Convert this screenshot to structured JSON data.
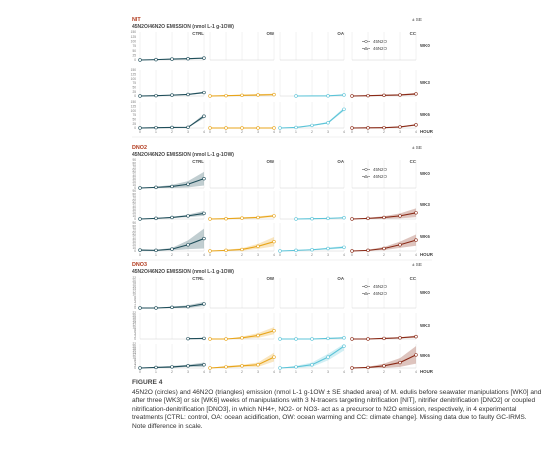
{
  "figure": {
    "number": "FIGURE 4",
    "caption": "45N2O (circles) and 46N2O (triangles) emission (nmol L-1 g-1OW ± SE shaded area) of M. edulis before seawater manipulations [WK0] and after three [WK3] or six [WK6] weeks of manipulations with 3 N-tracers targeting nitrification [NIT], nitrifier denitrification [DNO2] or coupled nitrification-denitrification [DNO3], in which NH4+, NO2- or NO3- act as a precursor to N2O emission, respectively, in 4 experimental treatments [CTRL: control, OA: ocean acidification, OW: ocean warming and CC: climate change]. Missing data due to faulty GC-IRMS. Note difference in scale."
  },
  "colors": {
    "CTRL": "#1f4e5a",
    "OW": "#e8a51b",
    "OA": "#5cc4d8",
    "CC": "#8a2a17",
    "grid": "#e6e6e6",
    "text": "#444444"
  },
  "chart_data": [
    {
      "type": "line",
      "title": "NIT",
      "subtitle": "45N2O/46N2O EMISSION (nmol L-1 g-1OW)",
      "se_label": "± SE",
      "legend": [
        "45N2O",
        "46N2O"
      ],
      "treatments": [
        "CTRL",
        "OW",
        "OA",
        "CC"
      ],
      "weeks": [
        "WK0",
        "WK3",
        "WK6"
      ],
      "xlabel": "HOUR",
      "x": [
        0,
        1,
        2,
        3,
        4
      ],
      "yticks": [
        "0",
        "25",
        "50",
        "75",
        "100",
        "125",
        "150"
      ],
      "ylim": [
        0,
        150
      ],
      "series": [
        {
          "treatment": "CTRL",
          "week": "WK0",
          "values": [
            0,
            2,
            5,
            7,
            10
          ],
          "se": [
            0,
            1,
            2,
            3,
            4
          ]
        },
        {
          "treatment": "CTRL",
          "week": "WK3",
          "values": [
            0,
            2,
            5,
            9,
            20
          ],
          "se": [
            0,
            1,
            2,
            3,
            5
          ]
        },
        {
          "treatment": "CTRL",
          "week": "WK6",
          "values": [
            0,
            2,
            3,
            4,
            68
          ],
          "se": [
            0,
            1,
            1,
            2,
            12
          ]
        },
        {
          "treatment": "OW",
          "week": "WK3",
          "values": [
            0,
            2,
            4,
            6,
            8
          ],
          "se": [
            0,
            2,
            4,
            5,
            6
          ]
        },
        {
          "treatment": "OW",
          "week": "WK6",
          "values": [
            0,
            0,
            0,
            0,
            0
          ],
          "se": [
            0,
            0,
            0,
            0,
            0
          ]
        },
        {
          "treatment": "OA",
          "week": "WK3",
          "values": [
            null,
            0,
            null,
            1,
            6
          ],
          "se": [
            0,
            0,
            0,
            1,
            3
          ]
        },
        {
          "treatment": "OA",
          "week": "WK6",
          "values": [
            0,
            3,
            15,
            30,
            108
          ],
          "se": [
            0,
            1,
            3,
            5,
            10
          ]
        },
        {
          "treatment": "CC",
          "week": "WK3",
          "values": [
            0,
            2,
            4,
            6,
            12
          ],
          "se": [
            0,
            2,
            3,
            4,
            6
          ]
        },
        {
          "treatment": "CC",
          "week": "WK6",
          "values": [
            0,
            1,
            2,
            6,
            18
          ],
          "se": [
            0,
            1,
            2,
            3,
            5
          ]
        }
      ]
    },
    {
      "type": "line",
      "title": "DNO2",
      "subtitle": "45N2O/46N2O EMISSION (nmol L-1 g-1OW)",
      "se_label": "± SE",
      "legend": [
        "45N2O",
        "46N2O"
      ],
      "treatments": [
        "CTRL",
        "OW",
        "OA",
        "CC"
      ],
      "weeks": [
        "WK0",
        "WK3",
        "WK6"
      ],
      "xlabel": "HOUR",
      "x": [
        0,
        1,
        2,
        3,
        4
      ],
      "yticks": [
        "0",
        "10",
        "20",
        "30",
        "40",
        "50",
        "60",
        "70",
        "80",
        "90"
      ],
      "ylim": [
        0,
        90
      ],
      "series": [
        {
          "treatment": "CTRL",
          "week": "WK0",
          "values": [
            0,
            2,
            5,
            12,
            30
          ],
          "se": [
            0,
            2,
            5,
            10,
            22
          ]
        },
        {
          "treatment": "CTRL",
          "week": "WK3",
          "values": [
            0,
            2,
            5,
            10,
            18
          ],
          "se": [
            0,
            1,
            2,
            4,
            8
          ]
        },
        {
          "treatment": "CTRL",
          "week": "WK6",
          "values": [
            3,
            2,
            6,
            20,
            40
          ],
          "se": [
            2,
            2,
            4,
            14,
            32
          ]
        },
        {
          "treatment": "OW",
          "week": "WK3",
          "values": [
            0,
            1,
            3,
            5,
            10
          ],
          "se": [
            0,
            1,
            2,
            3,
            4
          ]
        },
        {
          "treatment": "OW",
          "week": "WK6",
          "values": [
            0,
            2,
            5,
            15,
            30
          ],
          "se": [
            0,
            2,
            4,
            8,
            15
          ]
        },
        {
          "treatment": "OA",
          "week": "WK3",
          "values": [
            null,
            0,
            1,
            2,
            4
          ],
          "se": [
            0,
            0,
            1,
            1,
            2
          ]
        },
        {
          "treatment": "OA",
          "week": "WK6",
          "values": [
            0,
            2,
            4,
            8,
            12
          ],
          "se": [
            0,
            1,
            2,
            3,
            4
          ]
        },
        {
          "treatment": "CC",
          "week": "WK3",
          "values": [
            0,
            2,
            5,
            10,
            20
          ],
          "se": [
            0,
            2,
            4,
            8,
            14
          ]
        },
        {
          "treatment": "CC",
          "week": "WK6",
          "values": [
            0,
            2,
            8,
            20,
            35
          ],
          "se": [
            0,
            2,
            5,
            10,
            18
          ]
        }
      ]
    },
    {
      "type": "line",
      "title": "DNO3",
      "subtitle": "45N2O/46N2O EMISSION (nmol L-1 g-1OW)",
      "se_label": "± SE",
      "legend": [
        "45N2O",
        "46N2O"
      ],
      "treatments": [
        "CTRL",
        "OW",
        "OA",
        "CC"
      ],
      "weeks": [
        "WK0",
        "WK3",
        "WK6"
      ],
      "xlabel": "HOUR",
      "x": [
        0,
        1,
        2,
        3,
        4
      ],
      "yticks": [
        "0",
        "2",
        "4",
        "6",
        "8",
        "10",
        "12",
        "14",
        "16",
        "18",
        "20",
        "22"
      ],
      "ylim": [
        0,
        22
      ],
      "series": [
        {
          "treatment": "CTRL",
          "week": "WK0",
          "values": [
            0,
            0,
            0.5,
            1,
            3
          ],
          "se": [
            0,
            0,
            0.5,
            1,
            1.5
          ]
        },
        {
          "treatment": "CTRL",
          "week": "WK3",
          "values": [
            null,
            null,
            null,
            0.3,
            0.5
          ],
          "se": [
            0,
            0,
            0,
            0.3,
            0.5
          ]
        },
        {
          "treatment": "CTRL",
          "week": "WK6",
          "values": [
            0,
            0.5,
            1,
            2,
            3
          ],
          "se": [
            0,
            0.5,
            1,
            1,
            2
          ]
        },
        {
          "treatment": "OW",
          "week": "WK3",
          "values": [
            0,
            0,
            1,
            3,
            7
          ],
          "se": [
            0,
            0,
            1,
            2,
            3
          ]
        },
        {
          "treatment": "OW",
          "week": "WK6",
          "values": [
            0,
            1,
            2,
            3,
            10
          ],
          "se": [
            0,
            1,
            1,
            2,
            4
          ]
        },
        {
          "treatment": "OA",
          "week": "WK3",
          "values": [
            0,
            0,
            0,
            0.5,
            1
          ],
          "se": [
            0,
            0,
            0,
            0.5,
            0.5
          ]
        },
        {
          "treatment": "OA",
          "week": "WK6",
          "values": [
            0,
            1,
            3,
            10,
            20
          ],
          "se": [
            0,
            1,
            2,
            3,
            4
          ]
        },
        {
          "treatment": "CC",
          "week": "WK3",
          "values": [
            0,
            0,
            0.5,
            1,
            2
          ],
          "se": [
            0,
            0,
            0.5,
            0.5,
            1
          ]
        },
        {
          "treatment": "CC",
          "week": "WK6",
          "values": [
            0,
            0.5,
            2,
            5,
            12
          ],
          "se": [
            0,
            0.5,
            2,
            4,
            8
          ]
        }
      ]
    }
  ]
}
